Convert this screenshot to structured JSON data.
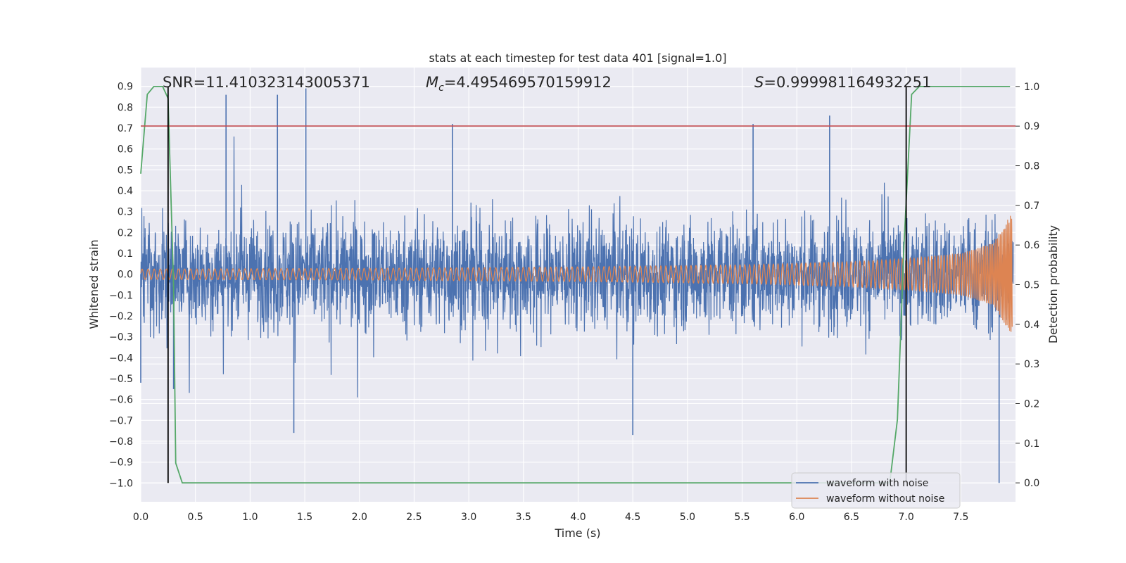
{
  "chart_data": {
    "type": "line",
    "title": "stats at each timestep for test data 401 [signal=1.0]",
    "xlabel": "Time (s)",
    "ylabel": "Whitened strain",
    "y2label": "Detection probability",
    "xlim": [
      0.0,
      8.0
    ],
    "ylim": [
      -1.09,
      0.99
    ],
    "y2lim": [
      -0.0477,
      1.0477
    ],
    "xticks": [
      "0.0",
      "0.5",
      "1.0",
      "1.5",
      "2.0",
      "2.5",
      "3.0",
      "3.5",
      "4.0",
      "4.5",
      "5.0",
      "5.5",
      "6.0",
      "6.5",
      "7.0",
      "7.5"
    ],
    "yticks": [
      "0.9",
      "0.8",
      "0.7",
      "0.6",
      "0.5",
      "0.4",
      "0.3",
      "0.2",
      "0.1",
      "0.0",
      "-0.1",
      "-0.2",
      "-0.3",
      "-0.4",
      "-0.5",
      "-0.6",
      "-0.7",
      "-0.8",
      "-0.9",
      "-1.0"
    ],
    "y2ticks": [
      "1.0",
      "0.9",
      "0.8",
      "0.7",
      "0.6",
      "0.5",
      "0.4",
      "0.3",
      "0.2",
      "0.1",
      "0.0"
    ],
    "grid": true,
    "legend_position": "lower-right",
    "annotations": {
      "snr": "SNR=11.410323143005371",
      "mc_symbol": "M",
      "mc_sub": "c",
      "mc_value": "=4.495469570159912",
      "s_symbol": "S",
      "s_value": "=0.999981164932251"
    },
    "series": [
      {
        "name": "waveform with noise",
        "color": "#4c72b0",
        "axis": "left",
        "envelope_points": [
          {
            "x": 0.0,
            "y": -0.52
          },
          {
            "x": 0.3,
            "y": -0.55
          },
          {
            "x": 0.78,
            "y": 0.86
          },
          {
            "x": 1.25,
            "y": 0.86
          },
          {
            "x": 1.4,
            "y": -0.76
          },
          {
            "x": 1.51,
            "y": 0.89
          },
          {
            "x": 2.85,
            "y": 0.72
          },
          {
            "x": 4.5,
            "y": -0.77
          },
          {
            "x": 5.6,
            "y": 0.72
          },
          {
            "x": 6.3,
            "y": 0.76
          },
          {
            "x": 7.85,
            "y": -1.0
          }
        ]
      },
      {
        "name": "waveform without noise",
        "color": "#dd8452",
        "axis": "left",
        "amplitude_points": [
          {
            "x": 0.0,
            "y": 0.025
          },
          {
            "x": 2.0,
            "y": 0.028
          },
          {
            "x": 4.0,
            "y": 0.035
          },
          {
            "x": 5.5,
            "y": 0.045
          },
          {
            "x": 6.5,
            "y": 0.06
          },
          {
            "x": 7.0,
            "y": 0.075
          },
          {
            "x": 7.5,
            "y": 0.1
          },
          {
            "x": 7.8,
            "y": 0.15
          },
          {
            "x": 7.95,
            "y": 0.28
          }
        ]
      },
      {
        "name": "detection probability",
        "color": "#55a868",
        "axis": "right",
        "points": [
          {
            "x": 0.0,
            "y": 0.78
          },
          {
            "x": 0.06,
            "y": 0.98
          },
          {
            "x": 0.12,
            "y": 1.0
          },
          {
            "x": 0.2,
            "y": 1.0
          },
          {
            "x": 0.25,
            "y": 0.97
          },
          {
            "x": 0.3,
            "y": 0.5
          },
          {
            "x": 0.32,
            "y": 0.05
          },
          {
            "x": 0.38,
            "y": 0.0
          },
          {
            "x": 6.85,
            "y": 0.0
          },
          {
            "x": 6.92,
            "y": 0.16
          },
          {
            "x": 6.98,
            "y": 0.6
          },
          {
            "x": 7.05,
            "y": 0.98
          },
          {
            "x": 7.12,
            "y": 1.0
          },
          {
            "x": 7.95,
            "y": 1.0
          }
        ]
      }
    ],
    "reference_lines": [
      {
        "orientation": "horizontal",
        "axis": "left",
        "value": 0.71,
        "color": "#c44e52"
      },
      {
        "orientation": "vertical",
        "value": 0.25,
        "color": "#000000"
      },
      {
        "orientation": "vertical",
        "value": 7.0,
        "color": "#000000"
      }
    ]
  }
}
